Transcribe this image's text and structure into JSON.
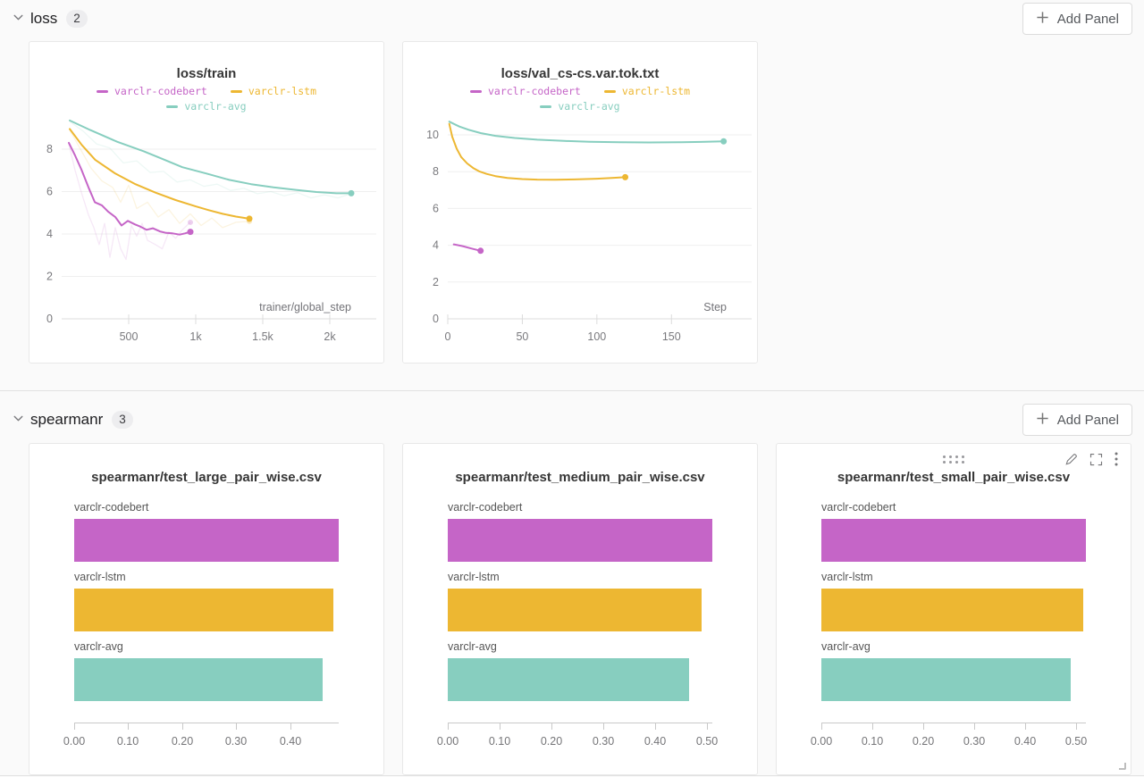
{
  "page": {
    "background": "#fafafa",
    "divider_color": "#e2e2e2",
    "panel_border": "#e8e8e8"
  },
  "series_colors": {
    "varclr-codebert": "#C565C7",
    "varclr-lstm": "#EDB732",
    "varclr-avg": "#87CEBF"
  },
  "icons": {
    "section_chevron": "chevron-down",
    "add_panel": "plus",
    "panel_drag": "drag-dots",
    "panel_edit": "pencil",
    "panel_fullscreen": "expand-corners",
    "panel_menu": "kebab-vertical",
    "panel_resize": "resize-corner"
  },
  "sections": [
    {
      "title": "loss",
      "count": "2",
      "add_panel_label": "Add Panel"
    },
    {
      "title": "spearmanr",
      "count": "3",
      "add_panel_label": "Add Panel"
    }
  ],
  "chart_data": [
    {
      "type": "line",
      "title": "loss/train",
      "xlabel": "trainer/global_step",
      "x_domain": [
        0,
        2160
      ],
      "y_domain": [
        0,
        9.6
      ],
      "x_ticks": [
        {
          "v": 500,
          "l": "500"
        },
        {
          "v": 1000,
          "l": "1k"
        },
        {
          "v": 1500,
          "l": "1.5k"
        },
        {
          "v": 2000,
          "l": "2k"
        }
      ],
      "y_ticks": [
        {
          "v": 0,
          "l": "0"
        },
        {
          "v": 2,
          "l": "2"
        },
        {
          "v": 4,
          "l": "4"
        },
        {
          "v": 6,
          "l": "6"
        },
        {
          "v": 8,
          "l": "8"
        }
      ],
      "legend_position": "top",
      "series": [
        {
          "name": "varclr-codebert",
          "color": "#C565C7",
          "points": [
            [
              53,
              8.3
            ],
            [
              100,
              7.7
            ],
            [
              147,
              7.05
            ],
            [
              200,
              6.2
            ],
            [
              247,
              5.5
            ],
            [
              300,
              5.35
            ],
            [
              347,
              5.05
            ],
            [
              400,
              4.8
            ],
            [
              447,
              4.4
            ],
            [
              493,
              4.62
            ],
            [
              547,
              4.45
            ],
            [
              587,
              4.35
            ],
            [
              633,
              4.2
            ],
            [
              680,
              4.27
            ],
            [
              733,
              4.12
            ],
            [
              780,
              4.05
            ],
            [
              827,
              4.03
            ],
            [
              880,
              3.97
            ],
            [
              920,
              4.03
            ],
            [
              960,
              4.1
            ]
          ]
        },
        {
          "name": "varclr-lstm",
          "color": "#EDB732",
          "points": [
            [
              60,
              8.95
            ],
            [
              150,
              8.2
            ],
            [
              250,
              7.5
            ],
            [
              400,
              6.85
            ],
            [
              550,
              6.35
            ],
            [
              700,
              5.95
            ],
            [
              850,
              5.6
            ],
            [
              1000,
              5.3
            ],
            [
              1100,
              5.12
            ],
            [
              1200,
              4.95
            ],
            [
              1300,
              4.82
            ],
            [
              1400,
              4.72
            ]
          ]
        },
        {
          "name": "varclr-avg",
          "color": "#87CEBF",
          "points": [
            [
              60,
              9.35
            ],
            [
              213,
              8.9
            ],
            [
              413,
              8.35
            ],
            [
              613,
              7.9
            ],
            [
              747,
              7.55
            ],
            [
              900,
              7.15
            ],
            [
              1080,
              6.85
            ],
            [
              1250,
              6.55
            ],
            [
              1413,
              6.35
            ],
            [
              1580,
              6.2
            ],
            [
              1747,
              6.08
            ],
            [
              1900,
              5.98
            ],
            [
              2050,
              5.92
            ],
            [
              2160,
              5.92
            ]
          ]
        }
      ],
      "raw_series": [
        {
          "name": "varclr-codebert-raw",
          "color": "#C565C7",
          "end_dot": true,
          "points": [
            [
              53,
              8.25
            ],
            [
              100,
              7.0
            ],
            [
              150,
              5.9
            ],
            [
              200,
              4.9
            ],
            [
              240,
              4.3
            ],
            [
              280,
              3.5
            ],
            [
              320,
              4.5
            ],
            [
              360,
              2.9
            ],
            [
              400,
              4.3
            ],
            [
              440,
              3.3
            ],
            [
              480,
              2.8
            ],
            [
              520,
              4.4
            ],
            [
              560,
              3.9
            ],
            [
              600,
              4.5
            ],
            [
              640,
              3.7
            ],
            [
              700,
              3.5
            ],
            [
              750,
              3.3
            ],
            [
              800,
              4.1
            ],
            [
              850,
              3.8
            ],
            [
              900,
              4.2
            ],
            [
              960,
              4.55
            ]
          ]
        },
        {
          "name": "varclr-lstm-raw",
          "color": "#EDB732",
          "end_dot": true,
          "points": [
            [
              60,
              8.9
            ],
            [
              140,
              8.0
            ],
            [
              220,
              7.1
            ],
            [
              300,
              6.5
            ],
            [
              380,
              6.2
            ],
            [
              440,
              5.5
            ],
            [
              500,
              6.3
            ],
            [
              560,
              5.2
            ],
            [
              640,
              5.5
            ],
            [
              720,
              4.8
            ],
            [
              800,
              5.15
            ],
            [
              880,
              4.5
            ],
            [
              960,
              4.95
            ],
            [
              1040,
              4.4
            ],
            [
              1120,
              4.75
            ],
            [
              1200,
              4.3
            ],
            [
              1300,
              4.55
            ],
            [
              1400,
              4.6
            ]
          ]
        },
        {
          "name": "varclr-avg-raw",
          "color": "#87CEBF",
          "end_dot": false,
          "points": [
            [
              60,
              9.3
            ],
            [
              160,
              8.85
            ],
            [
              260,
              8.25
            ],
            [
              360,
              8.05
            ],
            [
              460,
              7.35
            ],
            [
              560,
              7.45
            ],
            [
              660,
              6.9
            ],
            [
              760,
              6.95
            ],
            [
              860,
              6.45
            ],
            [
              960,
              6.55
            ],
            [
              1060,
              6.25
            ],
            [
              1160,
              6.35
            ],
            [
              1260,
              6.05
            ],
            [
              1360,
              6.15
            ],
            [
              1460,
              5.9
            ],
            [
              1560,
              6.0
            ],
            [
              1660,
              5.8
            ],
            [
              1760,
              5.95
            ],
            [
              1860,
              5.7
            ],
            [
              1960,
              5.85
            ],
            [
              2060,
              5.7
            ],
            [
              2160,
              5.9
            ]
          ]
        }
      ]
    },
    {
      "type": "line",
      "title": "loss/val_cs-cs.var.tok.txt",
      "xlabel": "Step",
      "x_domain": [
        0,
        187
      ],
      "y_domain": [
        0,
        11.07
      ],
      "x_ticks": [
        {
          "v": 0,
          "l": "0"
        },
        {
          "v": 50,
          "l": "50"
        },
        {
          "v": 100,
          "l": "100"
        },
        {
          "v": 150,
          "l": "150"
        }
      ],
      "y_ticks": [
        {
          "v": 0,
          "l": "0"
        },
        {
          "v": 2,
          "l": "2"
        },
        {
          "v": 4,
          "l": "4"
        },
        {
          "v": 6,
          "l": "6"
        },
        {
          "v": 8,
          "l": "8"
        },
        {
          "v": 10,
          "l": "10"
        }
      ],
      "legend_position": "top",
      "series": [
        {
          "name": "varclr-codebert",
          "color": "#C565C7",
          "points": [
            [
              4,
              4.05
            ],
            [
              10,
              3.95
            ],
            [
              16,
              3.82
            ],
            [
              22,
              3.7
            ]
          ]
        },
        {
          "name": "varclr-lstm",
          "color": "#EDB732",
          "points": [
            [
              1,
              10.6
            ],
            [
              3,
              9.9
            ],
            [
              6,
              9.25
            ],
            [
              9,
              8.8
            ],
            [
              13,
              8.45
            ],
            [
              17,
              8.2
            ],
            [
              21,
              8.02
            ],
            [
              26,
              7.88
            ],
            [
              32,
              7.76
            ],
            [
              40,
              7.66
            ],
            [
              50,
              7.6
            ],
            [
              60,
              7.57
            ],
            [
              72,
              7.56
            ],
            [
              85,
              7.58
            ],
            [
              100,
              7.62
            ],
            [
              110,
              7.66
            ],
            [
              119,
              7.7
            ]
          ]
        },
        {
          "name": "varclr-avg",
          "color": "#87CEBF",
          "points": [
            [
              1,
              10.72
            ],
            [
              4,
              10.6
            ],
            [
              8,
              10.45
            ],
            [
              14,
              10.28
            ],
            [
              22,
              10.1
            ],
            [
              32,
              9.95
            ],
            [
              45,
              9.83
            ],
            [
              60,
              9.74
            ],
            [
              78,
              9.67
            ],
            [
              95,
              9.63
            ],
            [
              115,
              9.6
            ],
            [
              135,
              9.59
            ],
            [
              155,
              9.6
            ],
            [
              170,
              9.62
            ],
            [
              185,
              9.65
            ]
          ]
        }
      ]
    },
    {
      "type": "bar",
      "orientation": "horizontal",
      "title": "spearmanr/test_large_pair_wise.csv",
      "categories": [
        "varclr-codebert",
        "varclr-lstm",
        "varclr-avg"
      ],
      "values": [
        0.49,
        0.48,
        0.46
      ],
      "colors": [
        "#C565C7",
        "#EDB732",
        "#87CEBF"
      ],
      "xlim": [
        0,
        0.49
      ],
      "x_ticks": [
        {
          "v": 0,
          "l": "0.00"
        },
        {
          "v": 0.1,
          "l": "0.10"
        },
        {
          "v": 0.2,
          "l": "0.20"
        },
        {
          "v": 0.3,
          "l": "0.30"
        },
        {
          "v": 0.4,
          "l": "0.40"
        }
      ]
    },
    {
      "type": "bar",
      "orientation": "horizontal",
      "title": "spearmanr/test_medium_pair_wise.csv",
      "categories": [
        "varclr-codebert",
        "varclr-lstm",
        "varclr-avg"
      ],
      "values": [
        0.51,
        0.49,
        0.465
      ],
      "colors": [
        "#C565C7",
        "#EDB732",
        "#87CEBF"
      ],
      "xlim": [
        0,
        0.51
      ],
      "x_ticks": [
        {
          "v": 0,
          "l": "0.00"
        },
        {
          "v": 0.1,
          "l": "0.10"
        },
        {
          "v": 0.2,
          "l": "0.20"
        },
        {
          "v": 0.3,
          "l": "0.30"
        },
        {
          "v": 0.4,
          "l": "0.40"
        },
        {
          "v": 0.5,
          "l": "0.50"
        }
      ]
    },
    {
      "type": "bar",
      "orientation": "horizontal",
      "title": "spearmanr/test_small_pair_wise.csv",
      "categories": [
        "varclr-codebert",
        "varclr-lstm",
        "varclr-avg"
      ],
      "values": [
        0.52,
        0.515,
        0.49
      ],
      "colors": [
        "#C565C7",
        "#EDB732",
        "#87CEBF"
      ],
      "xlim": [
        0,
        0.52
      ],
      "x_ticks": [
        {
          "v": 0,
          "l": "0.00"
        },
        {
          "v": 0.1,
          "l": "0.10"
        },
        {
          "v": 0.2,
          "l": "0.20"
        },
        {
          "v": 0.3,
          "l": "0.30"
        },
        {
          "v": 0.4,
          "l": "0.40"
        },
        {
          "v": 0.5,
          "l": "0.50"
        }
      ]
    }
  ]
}
